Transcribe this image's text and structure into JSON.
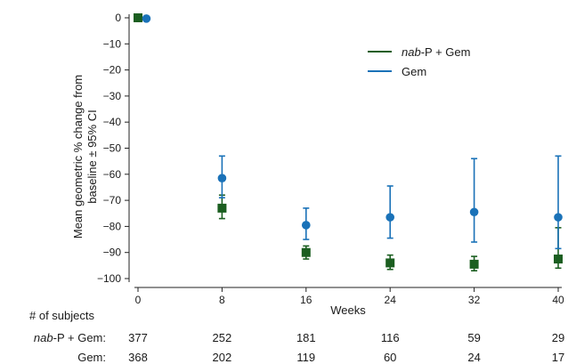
{
  "chart_data": {
    "type": "scatter",
    "xlabel": "Weeks",
    "ylabel_line1": "Mean geometric % change from",
    "ylabel_line2": "baseline ± 95% CI",
    "xlim": [
      0,
      40
    ],
    "ylim": [
      -100,
      0
    ],
    "x_ticks": [
      0,
      8,
      16,
      24,
      32,
      40
    ],
    "y_ticks": [
      0,
      -10,
      -20,
      -30,
      -40,
      -50,
      -60,
      -70,
      -80,
      -90,
      -100
    ],
    "x_tick_labels": [
      "0",
      "8",
      "16",
      "24",
      "32",
      "40"
    ],
    "y_tick_labels": [
      "0",
      "−10",
      "−20",
      "−30",
      "−40",
      "−50",
      "−60",
      "−70",
      "−80",
      "−90",
      "−100"
    ],
    "legend_placement": "top-right",
    "series": [
      {
        "name_italic_part": "nab",
        "name_rest": "-P + Gem",
        "name": "nab-P + Gem",
        "color": "#1b5e20",
        "marker": "square",
        "points": [
          {
            "x": 0,
            "y": 0,
            "lo": 0,
            "hi": 0
          },
          {
            "x": 8,
            "y": -73,
            "lo": -77,
            "hi": -68
          },
          {
            "x": 16,
            "y": -90,
            "lo": -92.5,
            "hi": -87.5
          },
          {
            "x": 24,
            "y": -94,
            "lo": -96.5,
            "hi": -91
          },
          {
            "x": 32,
            "y": -94.5,
            "lo": -97,
            "hi": -91.5
          },
          {
            "x": 40,
            "y": -92.5,
            "lo": -96,
            "hi": -80.5
          }
        ]
      },
      {
        "name": "Gem",
        "color": "#1a72b8",
        "marker": "circle",
        "points": [
          {
            "x": 0.8,
            "y": -0.3,
            "lo": -0.3,
            "hi": -0.3
          },
          {
            "x": 8,
            "y": -61.5,
            "lo": -69,
            "hi": -53
          },
          {
            "x": 16,
            "y": -79.5,
            "lo": -85,
            "hi": -73
          },
          {
            "x": 24,
            "y": -76.5,
            "lo": -84.5,
            "hi": -64.5
          },
          {
            "x": 32,
            "y": -74.5,
            "lo": -86,
            "hi": -54
          },
          {
            "x": 40,
            "y": -76.5,
            "lo": -88.5,
            "hi": -53
          }
        ]
      }
    ]
  },
  "subjects_table": {
    "title": "# of subjects",
    "rows": [
      {
        "label_italic": "nab",
        "label_rest": "-P + Gem:",
        "values": [
          "377",
          "252",
          "181",
          "116",
          "59",
          "29"
        ]
      },
      {
        "label_italic": "",
        "label_rest": "Gem:",
        "values": [
          "368",
          "202",
          "119",
          "60",
          "24",
          "17"
        ]
      }
    ]
  }
}
